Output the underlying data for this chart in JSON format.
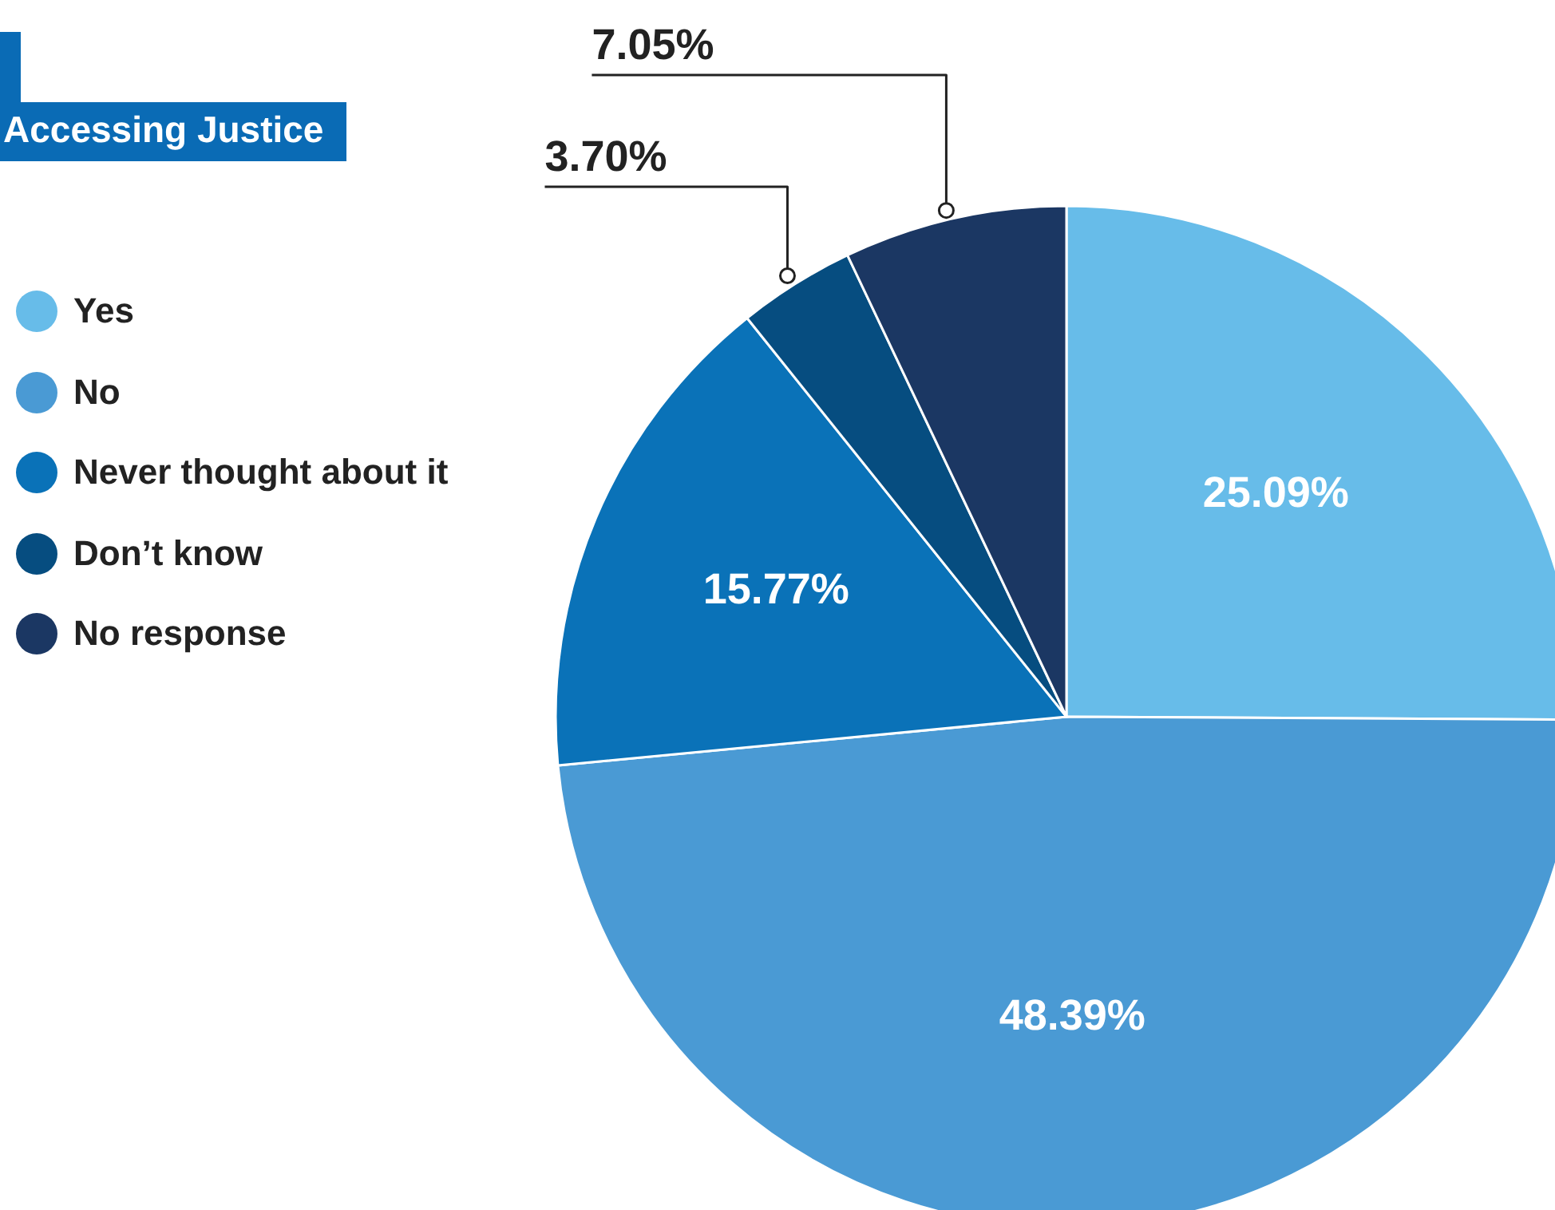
{
  "chart_data": {
    "type": "pie",
    "title": "Accessing Justice",
    "categories": [
      "Yes",
      "No",
      "Never thought about it",
      "Don’t know",
      "No response"
    ],
    "values": [
      25.09,
      48.39,
      15.77,
      3.7,
      7.05
    ],
    "colors": [
      "#67bce9",
      "#4a9ad4",
      "#0a72b8",
      "#064d80",
      "#1b3763"
    ],
    "value_labels": [
      "25.09%",
      "48.39%",
      "15.77%",
      "3.70%",
      "7.05%"
    ],
    "legend": "left"
  }
}
